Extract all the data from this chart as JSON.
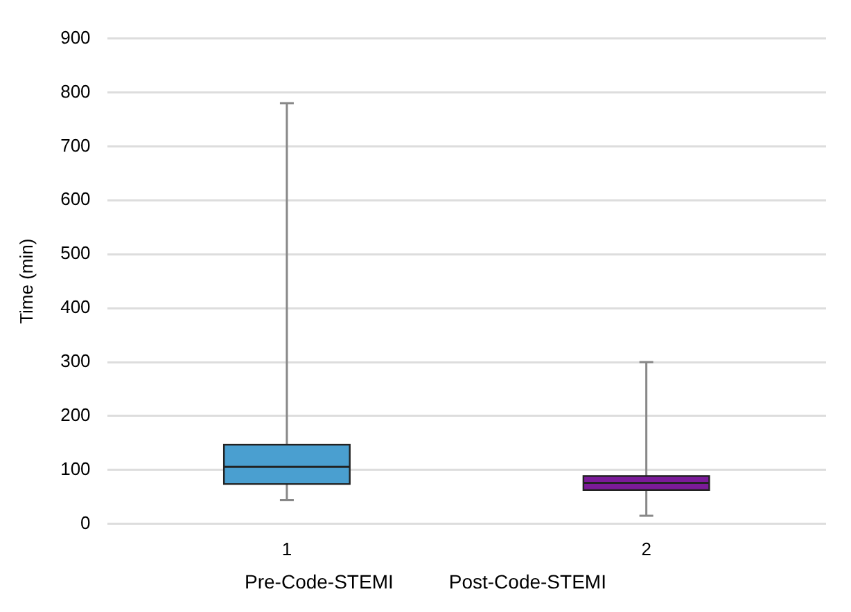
{
  "chart_data": {
    "type": "box",
    "ylabel": "Time (min)",
    "categories": [
      "1",
      "2"
    ],
    "boxes": [
      {
        "low": 44,
        "q1": 74,
        "median": 106,
        "q3": 147,
        "high": 780
      },
      {
        "low": 15,
        "q1": 63,
        "median": 76,
        "q3": 89,
        "high": 300
      }
    ],
    "colors": [
      "#4a9fd0",
      "#7b1b99"
    ],
    "ylim": [
      0,
      900
    ],
    "yticks": [
      0,
      100,
      200,
      300,
      400,
      500,
      600,
      700,
      800,
      900
    ],
    "grid": "y",
    "annotations": [
      "Pre-Code-STEMI",
      "Post-Code-STEMI"
    ]
  }
}
